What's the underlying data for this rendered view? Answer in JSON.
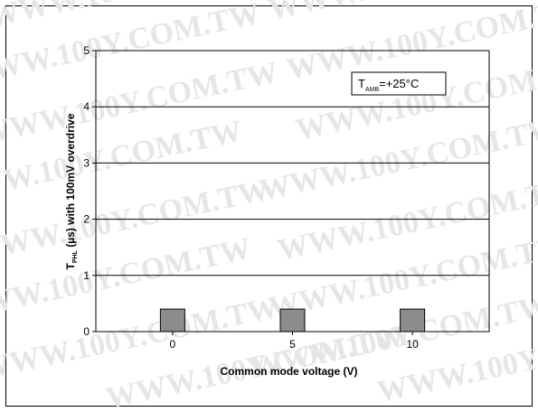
{
  "watermark": {
    "text": "WWW.100Y.COM.TW"
  },
  "chart_data": {
    "type": "bar",
    "title": "",
    "xlabel": "Common mode voltage (V)",
    "ylabel_main": "T",
    "ylabel_sub": "PHL",
    "ylabel_rest": " (µs) with 100mV overdrive",
    "annotation_main": "T",
    "annotation_sub": "AMB",
    "annotation_rest": "=+25°C",
    "categories": [
      "0",
      "5",
      "10"
    ],
    "x_values": [
      0,
      5,
      10
    ],
    "values": [
      0.4,
      0.4,
      0.4
    ],
    "xlim": [
      -3.2,
      13.2
    ],
    "ylim": [
      0,
      5
    ],
    "yticks": [
      0,
      1,
      2,
      3,
      4,
      5
    ],
    "ytick_labels": [
      "0",
      "1",
      "2",
      "3",
      "4",
      "5"
    ],
    "grid": true,
    "bar_color": "#8c8c8c",
    "legend": "none"
  }
}
